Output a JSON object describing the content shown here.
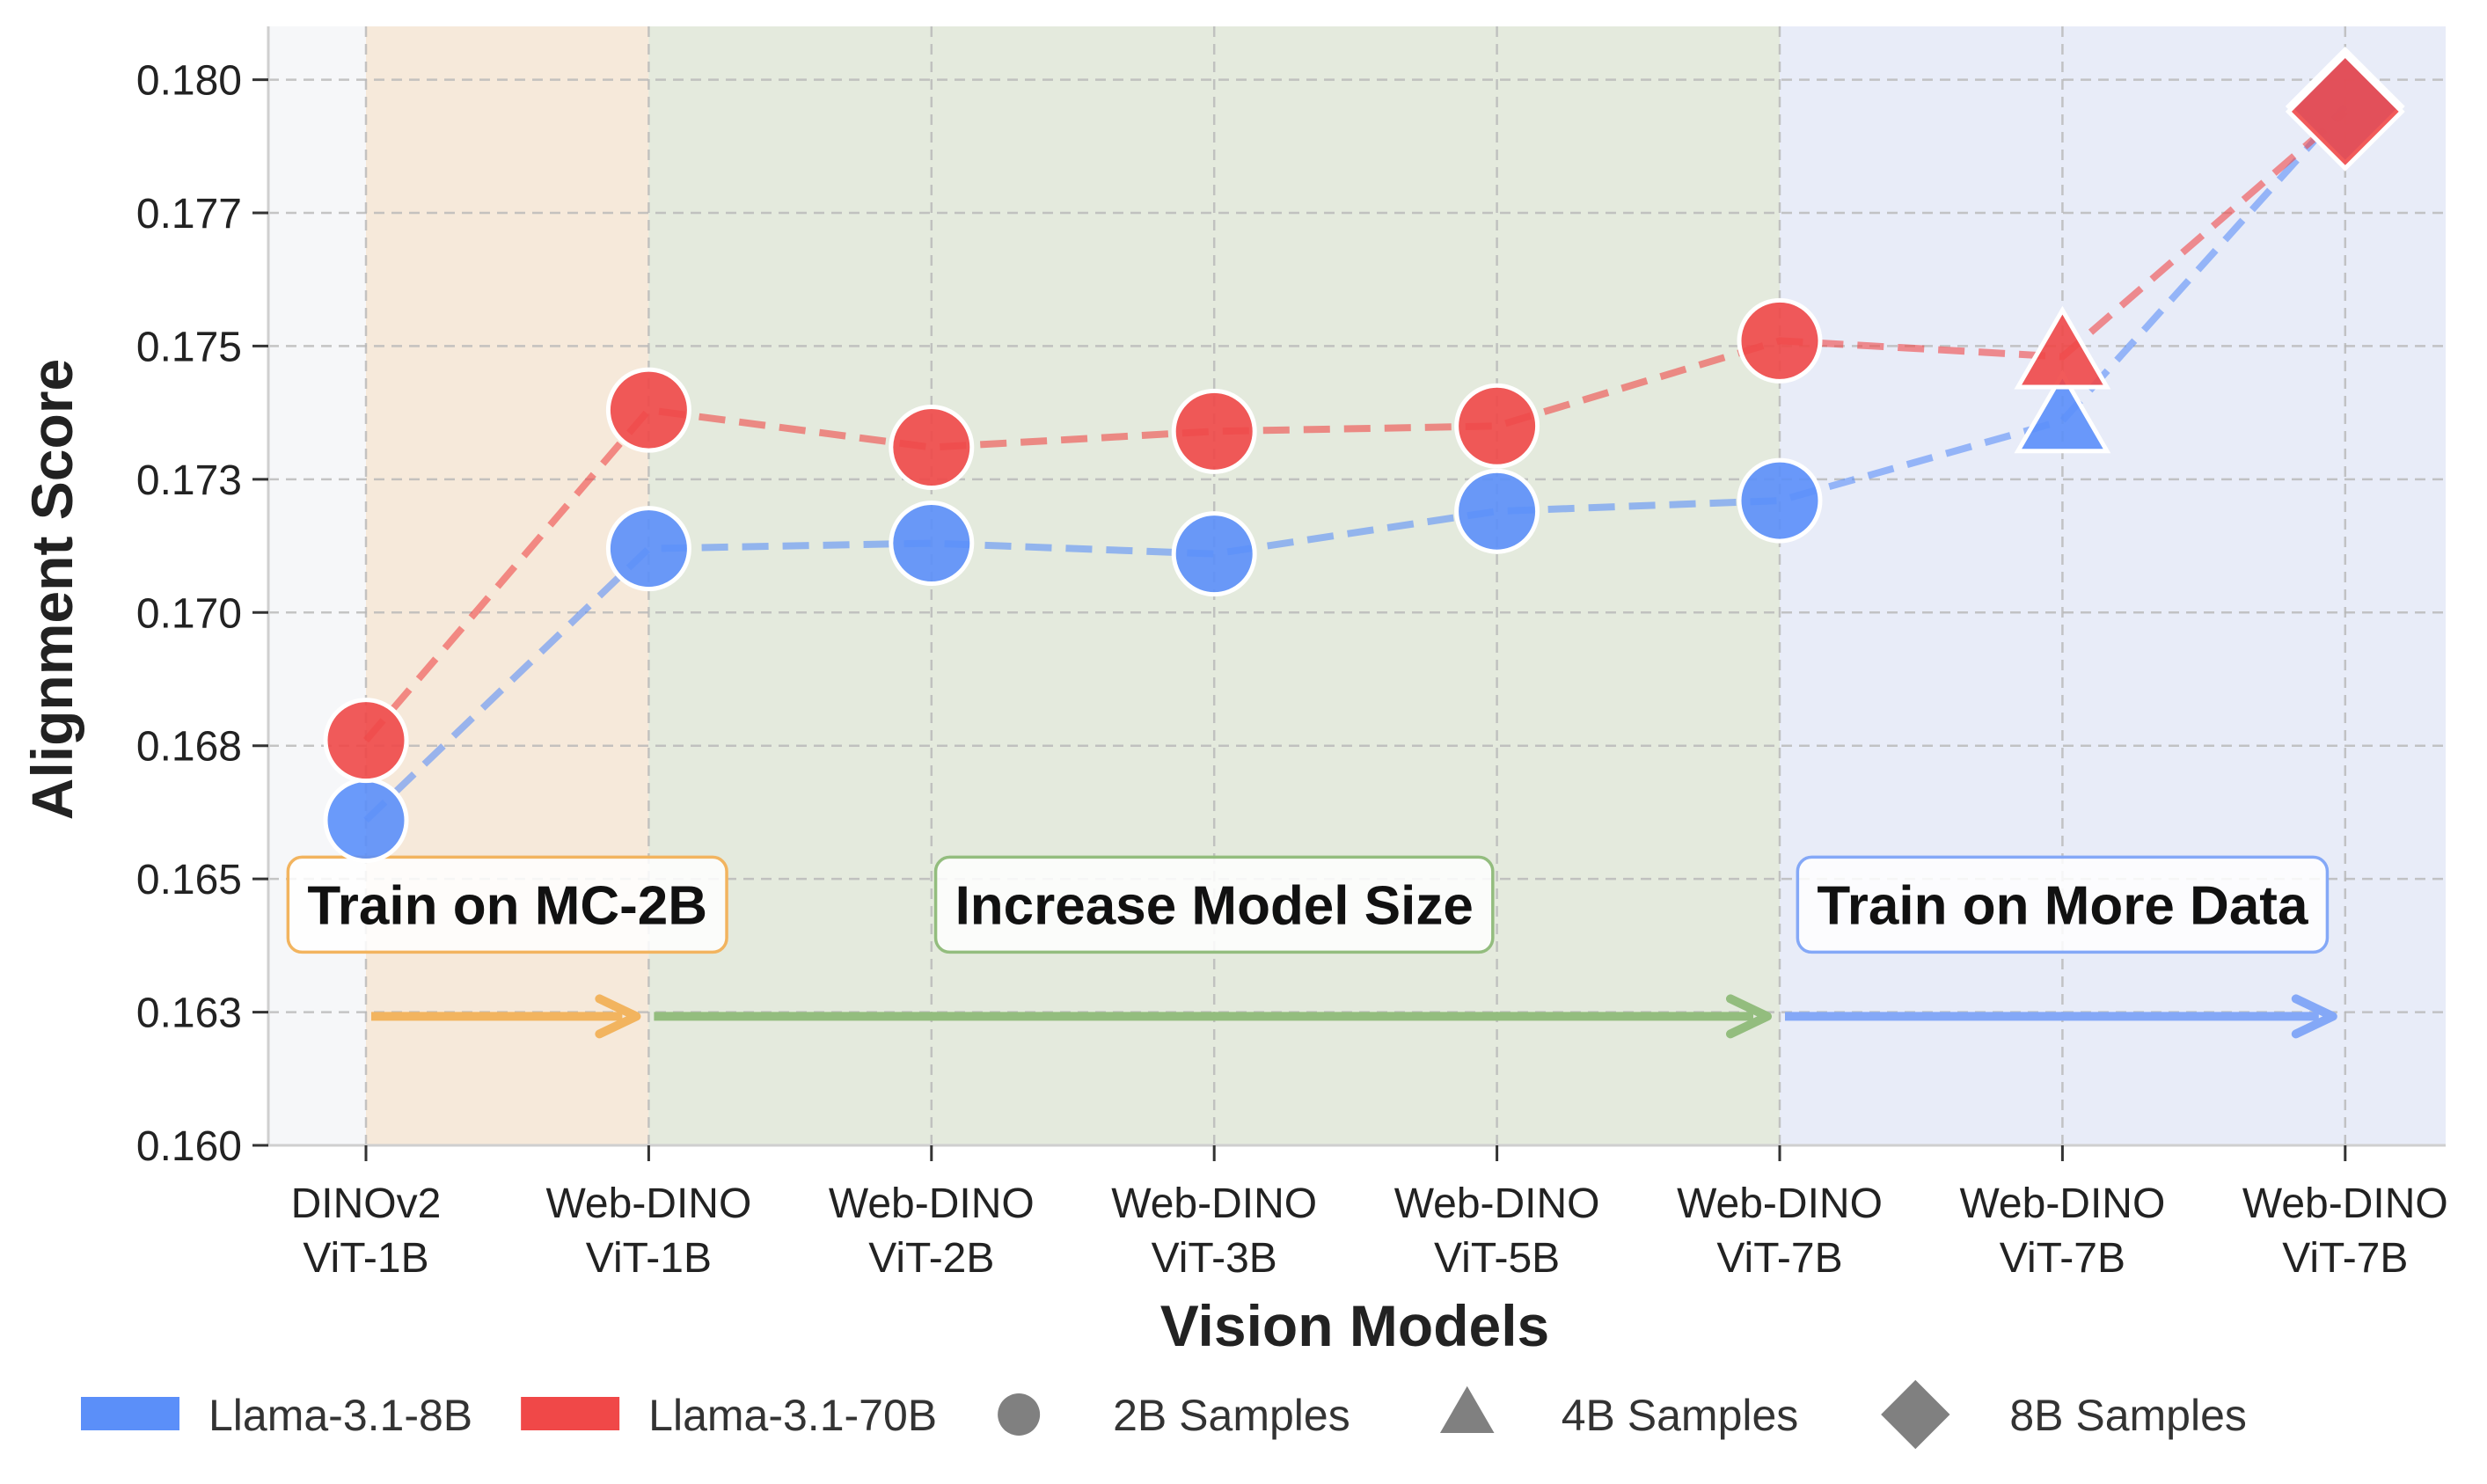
{
  "chart_data": {
    "type": "line",
    "xlabel": "Vision Models",
    "ylabel": "Alignment Score",
    "ylim": [
      0.16,
      0.181
    ],
    "y_ticks": [
      "0.160",
      "0.163",
      "0.165",
      "0.168",
      "0.170",
      "0.173",
      "0.175",
      "0.177",
      "0.180"
    ],
    "y_tick_values": [
      0.16,
      0.1625,
      0.165,
      0.1675,
      0.17,
      0.1725,
      0.175,
      0.1775,
      0.18
    ],
    "grid": true,
    "categories": [
      {
        "line1": "DINOv2",
        "line2": "ViT-1B"
      },
      {
        "line1": "Web-DINO",
        "line2": "ViT-1B"
      },
      {
        "line1": "Web-DINO",
        "line2": "ViT-2B"
      },
      {
        "line1": "Web-DINO",
        "line2": "ViT-3B"
      },
      {
        "line1": "Web-DINO",
        "line2": "ViT-5B"
      },
      {
        "line1": "Web-DINO",
        "line2": "ViT-7B"
      },
      {
        "line1": "Web-DINO",
        "line2": "ViT-7B"
      },
      {
        "line1": "Web-DINO",
        "line2": "ViT-7B"
      }
    ],
    "markers": [
      "circle",
      "circle",
      "circle",
      "circle",
      "circle",
      "circle",
      "triangle",
      "diamond"
    ],
    "series": [
      {
        "name": "Llama-3.1-8B",
        "color": "#5b8ff9",
        "values": [
          0.1661,
          0.1712,
          0.1713,
          0.1711,
          0.1719,
          0.1721,
          0.1736,
          0.1795
        ]
      },
      {
        "name": "Llama-3.1-70B",
        "color": "#f04848",
        "values": [
          0.1676,
          0.1738,
          0.1731,
          0.1734,
          0.1735,
          0.1751,
          0.1748,
          0.1794
        ]
      }
    ],
    "phases": [
      {
        "label": "Train on MC-2B",
        "from": 0,
        "to": 1,
        "color": "#f2b45f",
        "bg": "#f6e9da"
      },
      {
        "label": "Increase Model Size",
        "from": 1,
        "to": 5,
        "color": "#93bd7e",
        "bg": "#e4eadd"
      },
      {
        "label": "Train on More Data",
        "from": 5,
        "to": 7,
        "color": "#84a8f7",
        "bg": "#e8ecf8"
      }
    ],
    "legend": {
      "placement": "bottom",
      "items": [
        {
          "label": "Llama-3.1-8B",
          "kind": "patch",
          "color": "#5b8ff9"
        },
        {
          "label": "Llama-3.1-70B",
          "kind": "patch",
          "color": "#f04848"
        },
        {
          "label": "2B Samples",
          "kind": "circle",
          "color": "#808080"
        },
        {
          "label": "4B Samples",
          "kind": "triangle",
          "color": "#808080"
        },
        {
          "label": "8B Samples",
          "kind": "diamond",
          "color": "#808080"
        }
      ]
    }
  }
}
